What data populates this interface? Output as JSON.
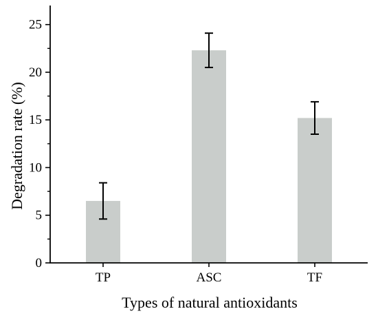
{
  "chart_data": {
    "type": "bar",
    "title": "",
    "xlabel": "Types of natural antioxidants",
    "ylabel": "Degradation rate (%)",
    "categories": [
      "TP",
      "ASC",
      "TF"
    ],
    "values": [
      6.5,
      22.3,
      15.2
    ],
    "errors": [
      1.9,
      1.8,
      1.7
    ],
    "ylim": [
      0,
      27
    ],
    "yticks": [
      "0",
      "5",
      "10",
      "15",
      "20",
      "25"
    ],
    "grid": false,
    "legend": "none",
    "bar_color": "#c9cdcb",
    "error_color": "#000000"
  }
}
